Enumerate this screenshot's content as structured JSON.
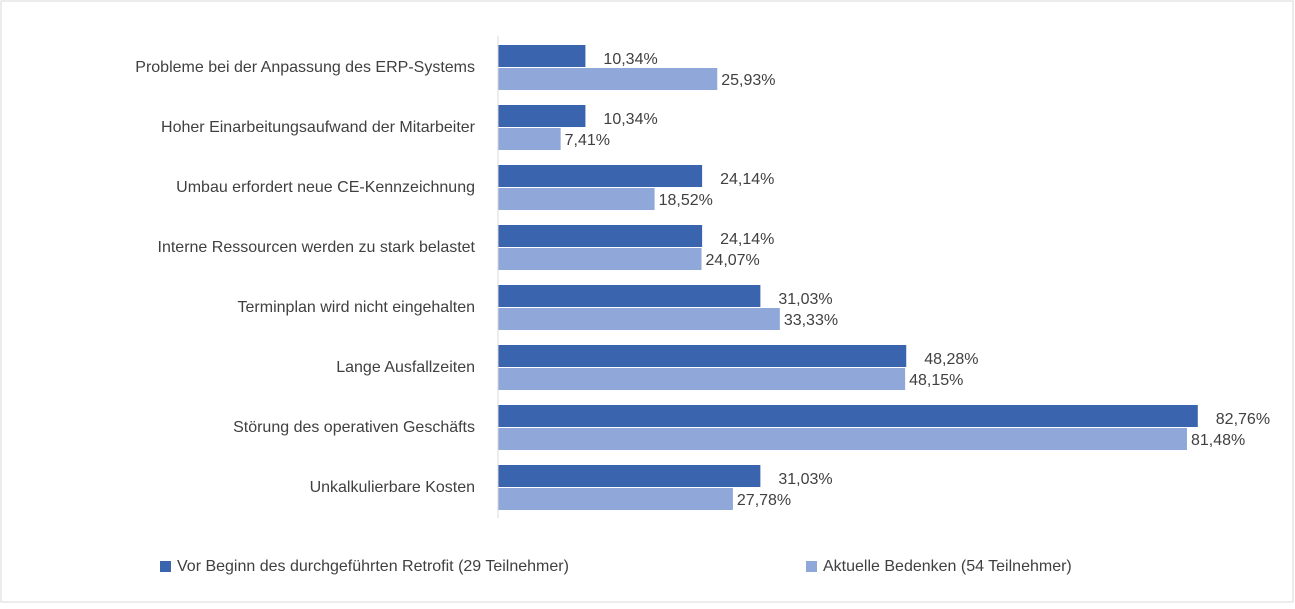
{
  "chart_data": {
    "type": "bar",
    "orientation": "horizontal",
    "categories": [
      "Probleme bei der Anpassung des ERP-Systems",
      "Hoher Einarbeitungsaufwand der Mitarbeiter",
      "Umbau erfordert neue CE-Kennzeichnung",
      "Interne Ressourcen werden zu stark belastet",
      "Terminplan wird nicht eingehalten",
      "Lange Ausfallzeiten",
      "Störung des operativen Geschäfts",
      "Unkalkulierbare Kosten"
    ],
    "series": [
      {
        "name": "Vor Beginn des durchgeführten Retrofit (29 Teilnehmer)",
        "color": "#3a64ad",
        "values": [
          10.34,
          10.34,
          24.14,
          24.14,
          31.03,
          48.28,
          82.76,
          31.03
        ],
        "value_labels": [
          "10,34%",
          "10,34%",
          "24,14%",
          "24,14%",
          "31,03%",
          "48,28%",
          "82,76%",
          "31,03%"
        ]
      },
      {
        "name": "Aktuelle Bedenken (54 Teilnehmer)",
        "color": "#8fa8d9",
        "values": [
          25.93,
          7.41,
          18.52,
          24.07,
          33.33,
          48.15,
          81.48,
          27.78
        ],
        "value_labels": [
          "25,93%",
          "7,41%",
          "18,52%",
          "24,07%",
          "33,33%",
          "48,15%",
          "81,48%",
          "27,78%"
        ]
      }
    ],
    "xlim": [
      0,
      90
    ],
    "legend": "bottom"
  }
}
